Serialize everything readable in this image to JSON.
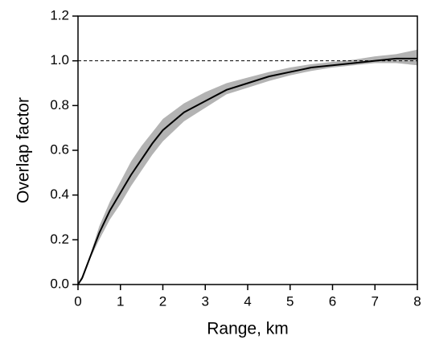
{
  "chart_data": {
    "type": "line",
    "xlabel": "Range, km",
    "ylabel": "Overlap factor",
    "x": [
      0,
      0.1,
      0.2,
      0.3,
      0.4,
      0.5,
      0.75,
      1,
      1.25,
      1.5,
      1.75,
      2,
      2.5,
      3,
      3.5,
      4,
      4.5,
      5,
      5.5,
      6,
      6.5,
      7,
      7.5,
      8
    ],
    "values": [
      0,
      0.03,
      0.08,
      0.13,
      0.18,
      0.23,
      0.33,
      0.41,
      0.49,
      0.56,
      0.63,
      0.69,
      0.77,
      0.82,
      0.87,
      0.9,
      0.93,
      0.95,
      0.97,
      0.98,
      0.99,
      1.0,
      1.01,
      1.01
    ],
    "lower": [
      0,
      0.02,
      0.07,
      0.12,
      0.16,
      0.2,
      0.29,
      0.36,
      0.44,
      0.51,
      0.58,
      0.64,
      0.73,
      0.79,
      0.85,
      0.88,
      0.91,
      0.935,
      0.955,
      0.97,
      0.98,
      0.99,
      0.99,
      0.98
    ],
    "upper": [
      0,
      0.04,
      0.09,
      0.14,
      0.2,
      0.26,
      0.37,
      0.46,
      0.55,
      0.62,
      0.68,
      0.74,
      0.81,
      0.86,
      0.9,
      0.925,
      0.95,
      0.97,
      0.985,
      0.995,
      1.005,
      1.02,
      1.03,
      1.05
    ],
    "color": "#000000",
    "band_color": "#b3b3b3",
    "reference_line": 1,
    "xlim": [
      0,
      8
    ],
    "xticks": [
      0,
      1,
      2,
      3,
      4,
      5,
      6,
      7,
      8
    ],
    "ylim": [
      0,
      1.2
    ],
    "yticks": [
      {
        "value": 0,
        "label": "0.0"
      },
      0.2,
      0.4,
      0.6,
      0.8,
      {
        "value": 1,
        "label": "1.0"
      },
      1.2
    ]
  }
}
